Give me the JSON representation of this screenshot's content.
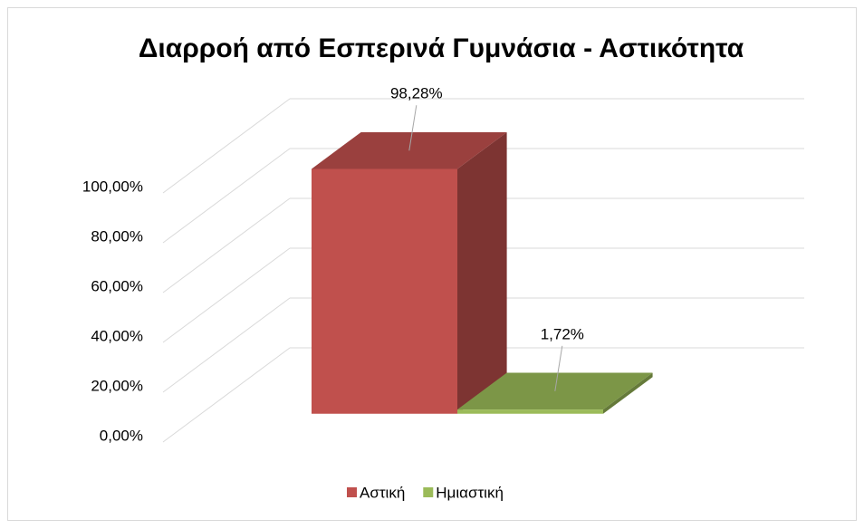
{
  "chart_data": {
    "type": "bar3d",
    "title": "Διαρροή από Εσπερινά Γυμνάσια - Αστικότητα",
    "categories": [
      ""
    ],
    "series": [
      {
        "name": "Αστική",
        "color": "#c0504d",
        "values": [
          98.28
        ],
        "value_labels": [
          "98,28%"
        ]
      },
      {
        "name": "Ημιαστική",
        "color": "#9bbb59",
        "values": [
          1.72
        ],
        "value_labels": [
          "1,72%"
        ]
      }
    ],
    "ylim": [
      0,
      100
    ],
    "yticks": [
      {
        "value": 0,
        "label": "0,00%"
      },
      {
        "value": 20,
        "label": "20,00%"
      },
      {
        "value": 40,
        "label": "40,00%"
      },
      {
        "value": 60,
        "label": "60,00%"
      },
      {
        "value": 80,
        "label": "80,00%"
      },
      {
        "value": 100,
        "label": "100,00%"
      }
    ],
    "grid": true,
    "legend": "bottom"
  }
}
